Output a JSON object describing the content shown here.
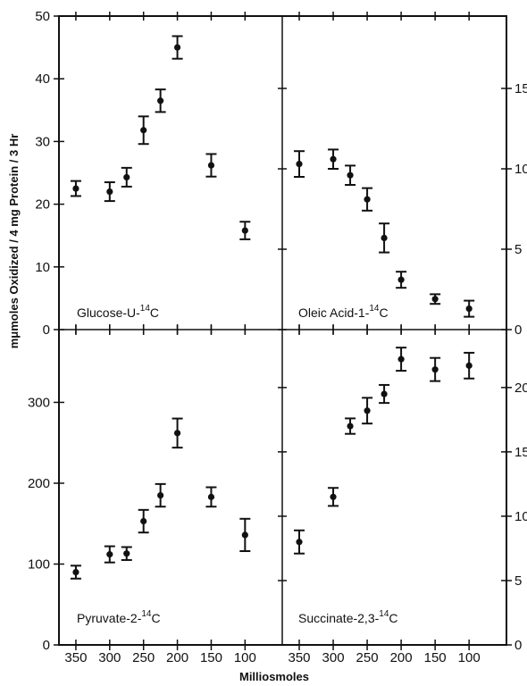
{
  "chart_data": [
    {
      "type": "scatter",
      "panel": "top-left",
      "label": "Glucose-U-",
      "label_sup": "14",
      "label_suffix": "C",
      "x": [
        350,
        300,
        275,
        250,
        225,
        200,
        150,
        100
      ],
      "y": [
        22.5,
        22,
        24.3,
        31.8,
        36.5,
        45,
        26.2,
        15.8
      ],
      "err": [
        1.2,
        1.5,
        1.5,
        2.2,
        1.8,
        1.8,
        1.8,
        1.4
      ],
      "ylim": [
        0,
        50
      ],
      "yticks": [
        0,
        10,
        20,
        30,
        40,
        50
      ]
    },
    {
      "type": "scatter",
      "panel": "top-right",
      "label": "Oleic Acid-1-",
      "label_sup": "14",
      "label_suffix": "C",
      "x": [
        350,
        300,
        275,
        250,
        225,
        200,
        150,
        100
      ],
      "y": [
        10.3,
        10.6,
        9.6,
        8.1,
        5.7,
        3.1,
        1.9,
        1.3
      ],
      "err": [
        0.8,
        0.6,
        0.6,
        0.7,
        0.9,
        0.5,
        0.3,
        0.5
      ],
      "ylim": [
        0,
        19.5
      ],
      "yticks": [
        0,
        5,
        10,
        15
      ]
    },
    {
      "type": "scatter",
      "panel": "bottom-left",
      "label": "Pyruvate-2-",
      "label_sup": "14",
      "label_suffix": "C",
      "x": [
        350,
        300,
        275,
        250,
        225,
        200,
        150,
        100
      ],
      "y": [
        90,
        112,
        113,
        153,
        185,
        262,
        183,
        136
      ],
      "err": [
        8,
        10,
        8,
        14,
        14,
        18,
        12,
        20
      ],
      "ylim": [
        0,
        390
      ],
      "yticks": [
        0,
        100,
        200,
        300
      ]
    },
    {
      "type": "scatter",
      "panel": "bottom-right",
      "label": "Succinate-2,3-",
      "label_sup": "14",
      "label_suffix": "C",
      "x": [
        350,
        300,
        275,
        250,
        225,
        200,
        150,
        100
      ],
      "y": [
        8.0,
        11.5,
        17.0,
        18.2,
        19.5,
        22.2,
        21.4,
        21.7
      ],
      "err": [
        0.9,
        0.7,
        0.6,
        1.0,
        0.7,
        0.9,
        0.9,
        1.0
      ],
      "ylim": [
        0,
        24.5
      ],
      "yticks": [
        0,
        5,
        10,
        15,
        20
      ]
    }
  ],
  "axes": {
    "xlabel": "Milliosmoles",
    "ylabel": "mμmoles Oxidized / 4 mg Protein / 3 Hr",
    "xticks": [
      350,
      300,
      250,
      200,
      150,
      100
    ],
    "xlim": [
      375,
      45
    ]
  }
}
